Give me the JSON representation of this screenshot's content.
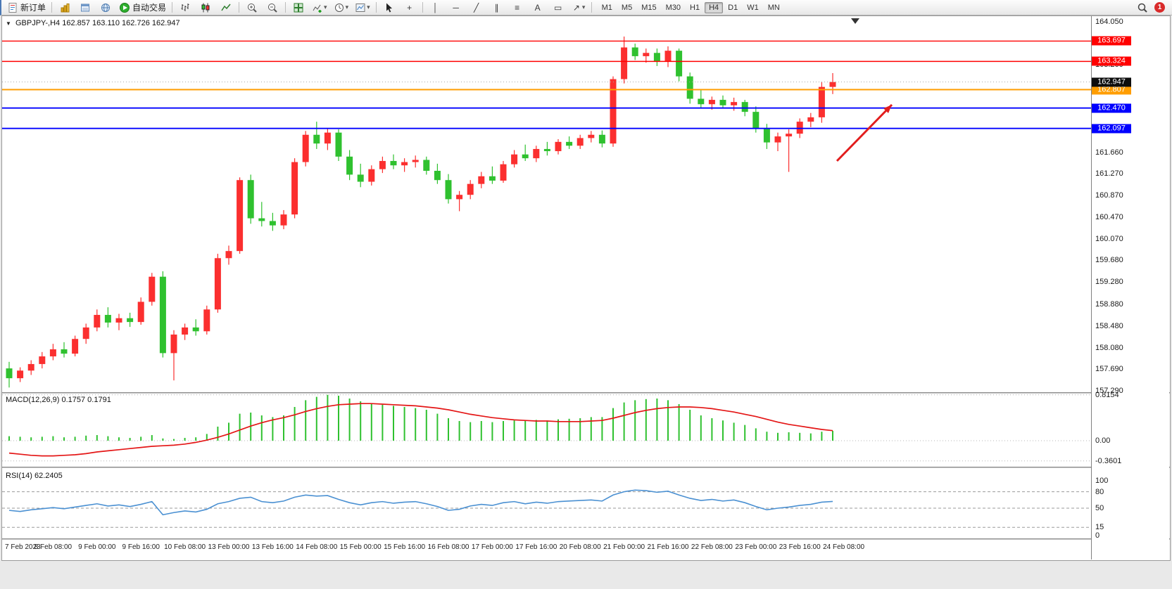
{
  "toolbar": {
    "new_order_label": "新订单",
    "auto_trading_label": "自动交易",
    "timeframes": [
      "M1",
      "M5",
      "M15",
      "M30",
      "H1",
      "H4",
      "D1",
      "W1",
      "MN"
    ],
    "active_timeframe": "H4",
    "notification_badge": "1",
    "glyphs": {
      "collapse": "▼",
      "crosshair": "+",
      "vline": "│",
      "hline": "─",
      "trendline": "╱",
      "channel": "∥",
      "fibonacci": "≡",
      "text_tool": "A",
      "label_tool": "▭",
      "arrows_tool": "↗",
      "dropdown": "▾"
    }
  },
  "chart": {
    "title_symbol": "GBPJPY-,H4",
    "title_ohlc": "162.857 163.110 162.726 162.947",
    "macd_label": "MACD(12,26,9) 0.1757 0.1791",
    "rsi_label": "RSI(14) 62.2405"
  },
  "chart_data": {
    "type": "candlestick",
    "symbol": "GBPJPY-",
    "period": "H4",
    "current_bar": {
      "open": 162.857,
      "high": 163.11,
      "low": 162.726,
      "close": 162.947
    },
    "ylim": [
      157.29,
      164.05
    ],
    "up_color": "#fb2f2f",
    "down_color": "#2fc12f",
    "price_axis_labels": [
      "164.050",
      "163.660",
      "163.260",
      "162.860",
      "162.470",
      "162.070",
      "161.660",
      "161.270",
      "160.870",
      "160.470",
      "160.070",
      "159.680",
      "159.280",
      "158.880",
      "158.480",
      "158.080",
      "157.690",
      "157.290"
    ],
    "x_labels": [
      "7 Feb 2023",
      "8 Feb 08:00",
      "9 Feb 00:00",
      "9 Feb 16:00",
      "10 Feb 08:00",
      "13 Feb 00:00",
      "13 Feb 16:00",
      "14 Feb 08:00",
      "15 Feb 00:00",
      "15 Feb 16:00",
      "16 Feb 08:00",
      "17 Feb 00:00",
      "17 Feb 16:00",
      "20 Feb 08:00",
      "21 Feb 00:00",
      "21 Feb 16:00",
      "22 Feb 08:00",
      "23 Feb 00:00",
      "23 Feb 16:00",
      "24 Feb 08:00"
    ],
    "bars_per_label": 4,
    "candles": [
      [
        157.7,
        157.82,
        157.35,
        157.52
      ],
      [
        157.52,
        157.72,
        157.45,
        157.66
      ],
      [
        157.66,
        157.85,
        157.58,
        157.78
      ],
      [
        157.78,
        158.0,
        157.7,
        157.92
      ],
      [
        157.92,
        158.15,
        157.85,
        158.05
      ],
      [
        158.05,
        158.18,
        157.9,
        157.97
      ],
      [
        157.97,
        158.3,
        157.92,
        158.24
      ],
      [
        158.24,
        158.52,
        158.15,
        158.45
      ],
      [
        158.45,
        158.78,
        158.38,
        158.68
      ],
      [
        158.68,
        158.82,
        158.45,
        158.54
      ],
      [
        158.54,
        158.7,
        158.4,
        158.62
      ],
      [
        158.62,
        158.72,
        158.46,
        158.55
      ],
      [
        158.55,
        159.0,
        158.5,
        158.92
      ],
      [
        158.92,
        159.45,
        158.85,
        159.38
      ],
      [
        159.38,
        159.48,
        157.9,
        157.98
      ],
      [
        157.98,
        158.4,
        157.48,
        158.32
      ],
      [
        158.32,
        158.52,
        158.22,
        158.45
      ],
      [
        158.45,
        158.6,
        158.3,
        158.38
      ],
      [
        158.38,
        158.85,
        158.32,
        158.78
      ],
      [
        158.78,
        159.8,
        158.72,
        159.72
      ],
      [
        159.72,
        159.95,
        159.6,
        159.85
      ],
      [
        159.85,
        161.2,
        159.8,
        161.15
      ],
      [
        161.15,
        161.25,
        160.35,
        160.45
      ],
      [
        160.45,
        160.75,
        160.3,
        160.4
      ],
      [
        160.4,
        160.55,
        160.22,
        160.32
      ],
      [
        160.32,
        160.6,
        160.25,
        160.52
      ],
      [
        160.52,
        161.55,
        160.45,
        161.48
      ],
      [
        161.48,
        162.05,
        161.4,
        161.98
      ],
      [
        161.98,
        162.22,
        161.72,
        161.82
      ],
      [
        161.82,
        162.1,
        161.7,
        162.02
      ],
      [
        162.02,
        162.08,
        161.5,
        161.58
      ],
      [
        161.58,
        161.7,
        161.15,
        161.25
      ],
      [
        161.25,
        161.45,
        161.02,
        161.12
      ],
      [
        161.12,
        161.42,
        161.05,
        161.35
      ],
      [
        161.35,
        161.58,
        161.28,
        161.5
      ],
      [
        161.5,
        161.62,
        161.35,
        161.42
      ],
      [
        161.42,
        161.55,
        161.3,
        161.48
      ],
      [
        161.48,
        161.6,
        161.38,
        161.52
      ],
      [
        161.52,
        161.58,
        161.25,
        161.32
      ],
      [
        161.32,
        161.45,
        161.08,
        161.15
      ],
      [
        161.15,
        161.26,
        160.72,
        160.8
      ],
      [
        160.8,
        160.95,
        160.58,
        160.88
      ],
      [
        160.88,
        161.15,
        160.8,
        161.08
      ],
      [
        161.08,
        161.3,
        161.0,
        161.22
      ],
      [
        161.22,
        161.4,
        161.08,
        161.14
      ],
      [
        161.14,
        161.5,
        161.1,
        161.44
      ],
      [
        161.44,
        161.7,
        161.38,
        161.62
      ],
      [
        161.62,
        161.8,
        161.5,
        161.55
      ],
      [
        161.55,
        161.78,
        161.48,
        161.72
      ],
      [
        161.72,
        161.85,
        161.6,
        161.68
      ],
      [
        161.68,
        161.9,
        161.62,
        161.85
      ],
      [
        161.85,
        161.95,
        161.72,
        161.78
      ],
      [
        161.78,
        161.98,
        161.72,
        161.92
      ],
      [
        161.92,
        162.05,
        161.84,
        161.98
      ],
      [
        161.98,
        162.06,
        161.75,
        161.82
      ],
      [
        161.82,
        163.05,
        161.76,
        163.0
      ],
      [
        163.0,
        163.78,
        162.92,
        163.58
      ],
      [
        163.58,
        163.65,
        163.35,
        163.42
      ],
      [
        163.42,
        163.56,
        163.3,
        163.48
      ],
      [
        163.48,
        163.56,
        163.24,
        163.32
      ],
      [
        163.32,
        163.6,
        163.22,
        163.52
      ],
      [
        163.52,
        163.56,
        162.96,
        163.05
      ],
      [
        163.05,
        163.12,
        162.55,
        162.64
      ],
      [
        162.64,
        162.8,
        162.46,
        162.54
      ],
      [
        162.54,
        162.68,
        162.44,
        162.62
      ],
      [
        162.62,
        162.7,
        162.46,
        162.52
      ],
      [
        162.52,
        162.66,
        162.42,
        162.58
      ],
      [
        162.58,
        162.62,
        162.32,
        162.4
      ],
      [
        162.4,
        162.5,
        162.02,
        162.1
      ],
      [
        162.1,
        162.18,
        161.72,
        161.84
      ],
      [
        161.84,
        162.02,
        161.68,
        161.95
      ],
      [
        161.95,
        162.08,
        161.3,
        162.0
      ],
      [
        162.0,
        162.28,
        161.92,
        162.22
      ],
      [
        162.22,
        162.38,
        162.12,
        162.3
      ],
      [
        162.3,
        162.95,
        162.2,
        162.857
      ],
      [
        162.857,
        163.11,
        162.726,
        162.947
      ]
    ],
    "hlines": [
      {
        "price": 163.697,
        "color": "#ff0000",
        "label": "163.697",
        "width": 1.4
      },
      {
        "price": 163.324,
        "color": "#ff0000",
        "label": "163.324",
        "width": 1.4
      },
      {
        "price": 162.807,
        "color": "#ff9d00",
        "label": "162.807",
        "width": 2
      },
      {
        "price": 162.47,
        "color": "#0000ff",
        "label": "162.470",
        "width": 1.8
      },
      {
        "price": 162.097,
        "color": "#0000ff",
        "label": "162.097",
        "width": 1.8
      }
    ],
    "current_price": {
      "value": 162.947,
      "label": "162.947",
      "color": "#0d0d0d"
    },
    "annotation_arrow": {
      "from": [
        1186,
        206
      ],
      "to": [
        1264,
        126
      ],
      "color": "#e21d1d"
    },
    "indicators": [
      {
        "name": "MACD",
        "axis_labels": [
          "0.8154",
          "0.00",
          "-0.3601"
        ],
        "hist_color": "#2fc12f",
        "signal_color": "#e41616",
        "values_hist": [
          0.08,
          0.07,
          0.06,
          0.07,
          0.08,
          0.06,
          0.07,
          0.09,
          0.1,
          0.08,
          0.06,
          0.05,
          0.07,
          0.1,
          0.04,
          0.03,
          0.05,
          0.06,
          0.12,
          0.25,
          0.32,
          0.48,
          0.5,
          0.45,
          0.42,
          0.45,
          0.6,
          0.72,
          0.78,
          0.8154,
          0.8,
          0.75,
          0.7,
          0.66,
          0.64,
          0.62,
          0.6,
          0.58,
          0.55,
          0.48,
          0.4,
          0.35,
          0.33,
          0.35,
          0.33,
          0.35,
          0.36,
          0.36,
          0.37,
          0.36,
          0.38,
          0.39,
          0.4,
          0.42,
          0.42,
          0.58,
          0.68,
          0.72,
          0.74,
          0.75,
          0.72,
          0.65,
          0.55,
          0.45,
          0.4,
          0.36,
          0.32,
          0.28,
          0.22,
          0.16,
          0.14,
          0.15,
          0.14,
          0.13,
          0.16,
          0.1757
        ],
        "values_signal": [
          -0.22,
          -0.24,
          -0.26,
          -0.27,
          -0.27,
          -0.26,
          -0.25,
          -0.23,
          -0.2,
          -0.18,
          -0.16,
          -0.14,
          -0.12,
          -0.1,
          -0.09,
          -0.08,
          -0.06,
          -0.03,
          0.01,
          0.06,
          0.12,
          0.19,
          0.26,
          0.32,
          0.37,
          0.41,
          0.46,
          0.52,
          0.57,
          0.61,
          0.64,
          0.65,
          0.66,
          0.66,
          0.65,
          0.64,
          0.63,
          0.62,
          0.6,
          0.58,
          0.55,
          0.51,
          0.47,
          0.44,
          0.41,
          0.39,
          0.37,
          0.36,
          0.35,
          0.35,
          0.34,
          0.34,
          0.34,
          0.35,
          0.36,
          0.4,
          0.45,
          0.5,
          0.54,
          0.57,
          0.59,
          0.6,
          0.6,
          0.59,
          0.57,
          0.54,
          0.51,
          0.47,
          0.43,
          0.38,
          0.33,
          0.29,
          0.26,
          0.23,
          0.2,
          0.1791
        ]
      },
      {
        "name": "RSI",
        "axis_labels": [
          "100",
          "80",
          "50",
          "15",
          "0"
        ],
        "levels": [
          80,
          50,
          15
        ],
        "color": "#4a90d2",
        "values": [
          46,
          44,
          47,
          49,
          51,
          49,
          52,
          55,
          58,
          54,
          56,
          53,
          57,
          62,
          38,
          42,
          45,
          43,
          48,
          58,
          62,
          68,
          70,
          62,
          60,
          63,
          70,
          74,
          72,
          73,
          66,
          60,
          56,
          60,
          62,
          59,
          61,
          62,
          58,
          53,
          46,
          48,
          54,
          57,
          55,
          60,
          62,
          58,
          61,
          59,
          62,
          63,
          64,
          65,
          63,
          74,
          80,
          83,
          82,
          79,
          81,
          74,
          68,
          64,
          66,
          63,
          65,
          60,
          53,
          47,
          50,
          52,
          55,
          57,
          61,
          62.24
        ]
      }
    ]
  }
}
